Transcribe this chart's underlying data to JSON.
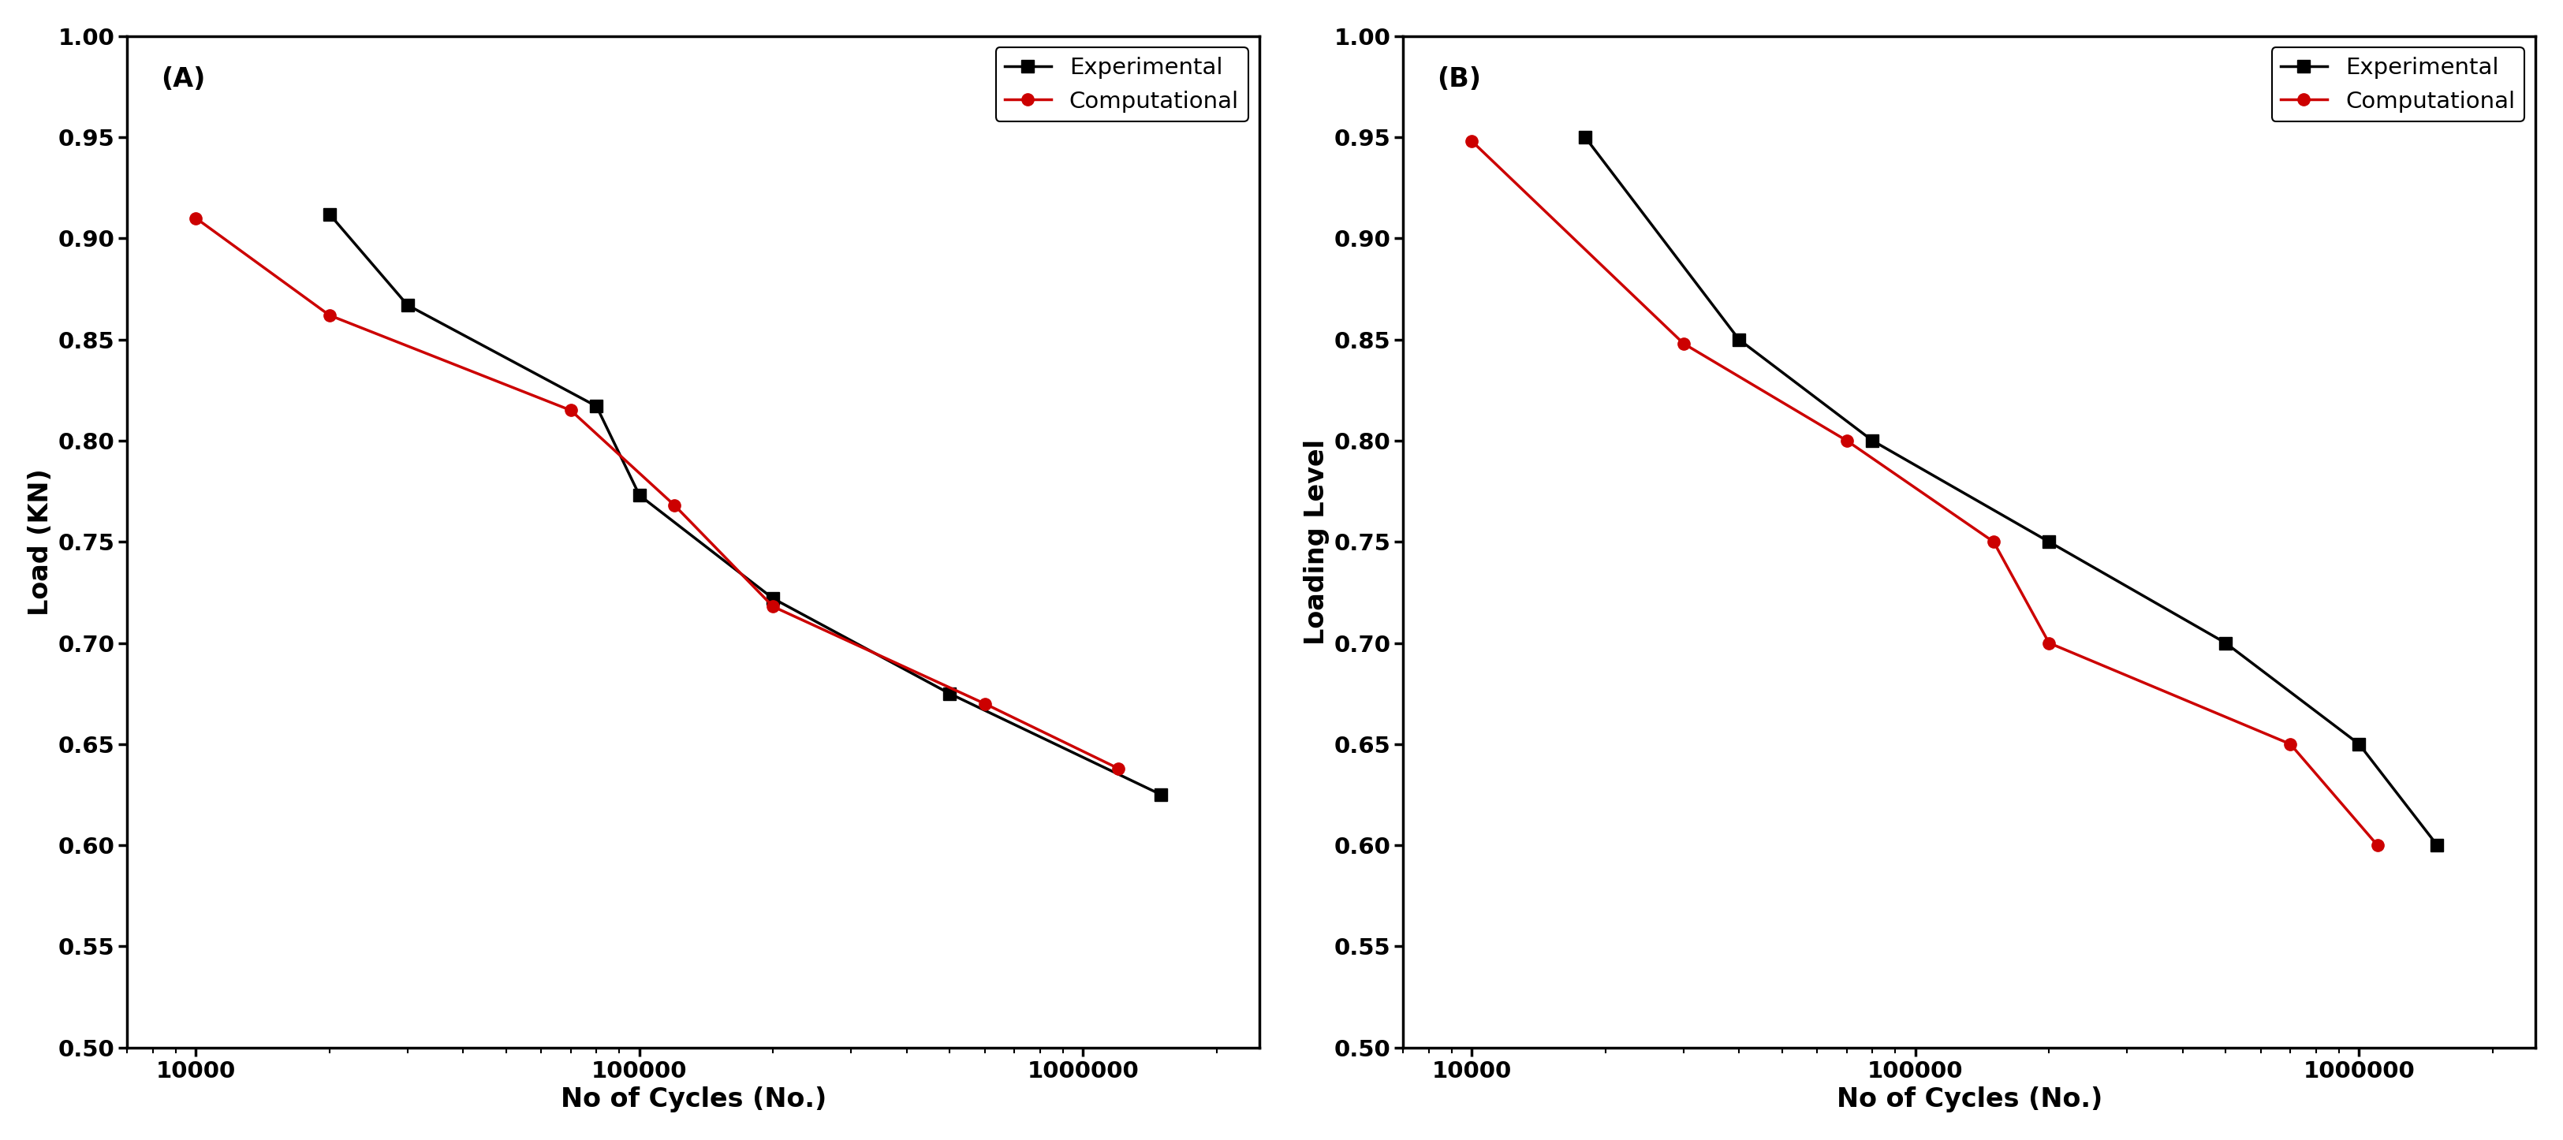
{
  "panel_A": {
    "label": "(A)",
    "ylabel": "Load (KN)",
    "xlabel": "No of Cycles (No.)",
    "xlim": [
      7000,
      2500000
    ],
    "ylim": [
      0.5,
      1.0
    ],
    "yticks": [
      0.5,
      0.55,
      0.6,
      0.65,
      0.7,
      0.75,
      0.8,
      0.85,
      0.9,
      0.95,
      1.0
    ],
    "xticks": [
      10000,
      100000,
      1000000
    ],
    "experimental_x": [
      20000,
      30000,
      80000,
      100000,
      200000,
      500000,
      1500000
    ],
    "experimental_y": [
      0.912,
      0.867,
      0.817,
      0.773,
      0.722,
      0.675,
      0.625
    ],
    "computational_x": [
      10000,
      20000,
      70000,
      120000,
      200000,
      600000,
      1200000
    ],
    "computational_y": [
      0.91,
      0.862,
      0.815,
      0.768,
      0.718,
      0.67,
      0.638
    ]
  },
  "panel_B": {
    "label": "(B)",
    "ylabel": "Loading Level",
    "xlabel": "No of Cycles (No.)",
    "xlim": [
      7000,
      2500000
    ],
    "ylim": [
      0.5,
      1.0
    ],
    "yticks": [
      0.5,
      0.55,
      0.6,
      0.65,
      0.7,
      0.75,
      0.8,
      0.85,
      0.9,
      0.95,
      1.0
    ],
    "xticks": [
      10000,
      100000,
      1000000
    ],
    "experimental_x": [
      18000,
      40000,
      80000,
      200000,
      500000,
      1000000,
      1500000
    ],
    "experimental_y": [
      0.95,
      0.85,
      0.8,
      0.75,
      0.7,
      0.65,
      0.6
    ],
    "computational_x": [
      10000,
      30000,
      70000,
      150000,
      200000,
      700000,
      1100000
    ],
    "computational_y": [
      0.948,
      0.848,
      0.8,
      0.75,
      0.7,
      0.65,
      0.6
    ]
  },
  "legend_experimental": "Experimental",
  "legend_computational": "Computational",
  "exp_color": "#000000",
  "comp_color": "#cc0000",
  "exp_marker": "s",
  "comp_marker": "o",
  "marker_size": 11,
  "linewidth": 2.5,
  "font_size_label": 24,
  "font_size_tick": 21,
  "font_size_legend": 21,
  "font_size_panel_label": 24
}
